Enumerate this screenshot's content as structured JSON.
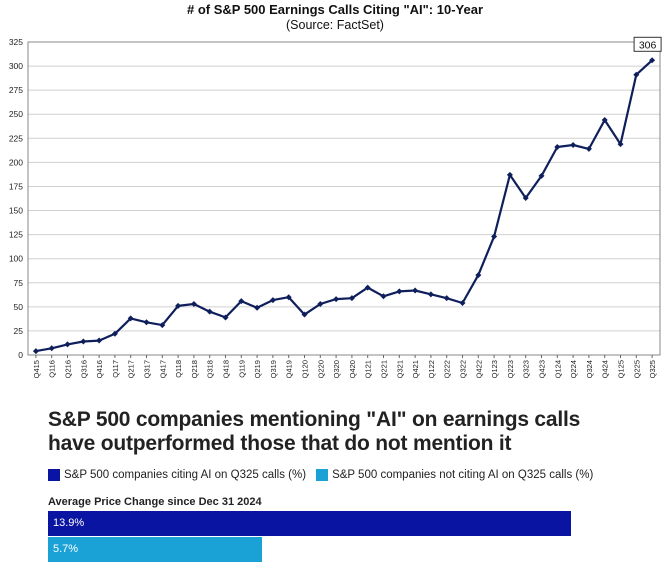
{
  "header": {
    "title": "# of S&P 500 Earnings Calls Citing \"AI\": 10-Year",
    "subtitle": "(Source: FactSet)"
  },
  "chart_data": [
    {
      "type": "line",
      "title": "# of S&P 500 Earnings Calls Citing \"AI\": 10-Year",
      "subtitle": "(Source: FactSet)",
      "xlabel": "",
      "ylabel": "",
      "ylim": [
        0,
        325
      ],
      "yticks": [
        0,
        25,
        50,
        75,
        100,
        125,
        150,
        175,
        200,
        225,
        250,
        275,
        300,
        325
      ],
      "grid": true,
      "categories": [
        "Q415",
        "Q116",
        "Q216",
        "Q316",
        "Q416",
        "Q117",
        "Q217",
        "Q317",
        "Q417",
        "Q118",
        "Q218",
        "Q318",
        "Q418",
        "Q119",
        "Q219",
        "Q319",
        "Q419",
        "Q120",
        "Q220",
        "Q320",
        "Q420",
        "Q121",
        "Q221",
        "Q321",
        "Q421",
        "Q122",
        "Q222",
        "Q322",
        "Q422",
        "Q123",
        "Q223",
        "Q323",
        "Q423",
        "Q124",
        "Q224",
        "Q324",
        "Q424",
        "Q125",
        "Q225",
        "Q325"
      ],
      "values": [
        4,
        7,
        11,
        14,
        15,
        22,
        38,
        34,
        31,
        51,
        53,
        45,
        39,
        56,
        49,
        57,
        60,
        42,
        53,
        58,
        59,
        70,
        61,
        66,
        67,
        63,
        59,
        54,
        83,
        123,
        187,
        163,
        186,
        216,
        218,
        214,
        244,
        219,
        291,
        306
      ],
      "series_color": "#0f1f5c",
      "annotation": {
        "label": "306",
        "category": "Q325"
      }
    },
    {
      "type": "bar",
      "orientation": "horizontal",
      "title": "S&P 500 companies mentioning \"AI\" on earnings calls have outperformed those that do not mention it",
      "subtitle": "Average Price Change since Dec 31 2024",
      "xlim": [
        0,
        15
      ],
      "series": [
        {
          "name": "S&P 500 companies citing AI on Q325 calls (%)",
          "value": 13.9,
          "label": "13.9%",
          "color": "#0a14a3"
        },
        {
          "name": "S&P 500 companies not citing AI on Q325 calls (%)",
          "value": 5.7,
          "label": "5.7%",
          "color": "#1aa2d6"
        }
      ]
    }
  ]
}
